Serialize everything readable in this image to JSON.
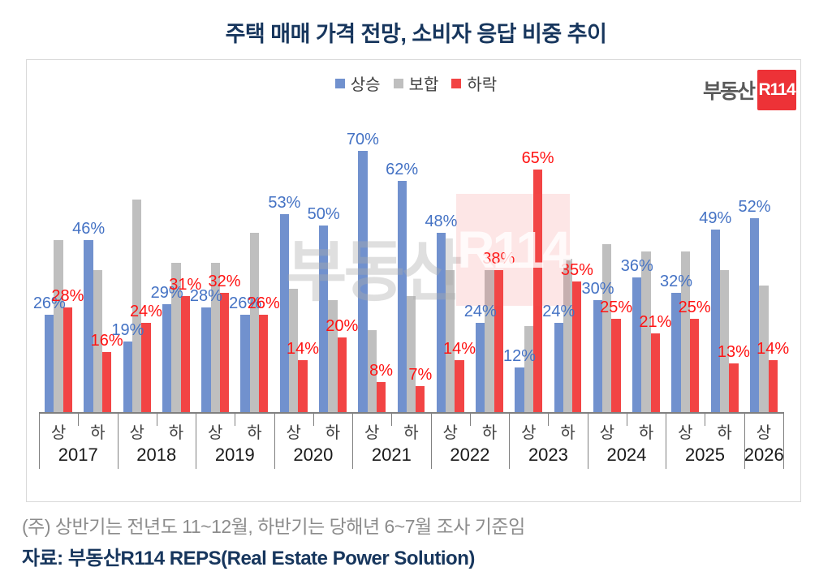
{
  "title": "주택 매매 가격 전망, 소비자 응답 비중 추이",
  "legend": {
    "items": [
      {
        "label": "상승",
        "color": "#7191CE"
      },
      {
        "label": "보합",
        "color": "#BFBFBF"
      },
      {
        "label": "하락",
        "color": "#F24444"
      }
    ]
  },
  "logo": {
    "prefix": "부동산",
    "box": "R114"
  },
  "watermark": {
    "text": "부동산",
    "box_text": "R114"
  },
  "footnote": "(주) 상반기는 전년도 11~12월, 하반기는 당해년 6~7월 조사 기준임",
  "source": "자료: 부동산R114 REPS(Real Estate Power Solution)",
  "colors": {
    "rise_bar": "#7191CE",
    "flat_bar": "#BFBFBF",
    "fall_bar": "#F24444",
    "rise_label": "#4472C4",
    "fall_label": "#FF1212",
    "title": "#17365D",
    "footnote": "#8C8C8C",
    "logo_red": "#ED3237",
    "frame_border": "#D9D9D9",
    "axis": "#808080"
  },
  "chart_data": {
    "type": "bar",
    "title": "주택 매매 가격 전망, 소비자 응답 비중 추이",
    "unit": "%",
    "grid": false,
    "legend_position": "top-center",
    "ylim": [
      0,
      82
    ],
    "series_names": {
      "rise": "상승",
      "flat": "보합",
      "fall": "하락"
    },
    "labels_shown": {
      "rise": true,
      "flat": false,
      "fall": true
    },
    "periods": [
      {
        "year": "2017",
        "half": "상",
        "rise": 26,
        "flat": 46,
        "fall": 28
      },
      {
        "year": "2017",
        "half": "하",
        "rise": 46,
        "flat": 38,
        "fall": 16
      },
      {
        "year": "2018",
        "half": "상",
        "rise": 19,
        "flat": 57,
        "fall": 24
      },
      {
        "year": "2018",
        "half": "하",
        "rise": 29,
        "flat": 40,
        "fall": 31
      },
      {
        "year": "2019",
        "half": "상",
        "rise": 28,
        "flat": 40,
        "fall": 32
      },
      {
        "year": "2019",
        "half": "하",
        "rise": 26,
        "flat": 48,
        "fall": 26
      },
      {
        "year": "2020",
        "half": "상",
        "rise": 53,
        "flat": 33,
        "fall": 14
      },
      {
        "year": "2020",
        "half": "하",
        "rise": 50,
        "flat": 30,
        "fall": 20
      },
      {
        "year": "2021",
        "half": "상",
        "rise": 70,
        "flat": 22,
        "fall": 8
      },
      {
        "year": "2021",
        "half": "하",
        "rise": 62,
        "flat": 31,
        "fall": 7
      },
      {
        "year": "2022",
        "half": "상",
        "rise": 48,
        "flat": 38,
        "fall": 14
      },
      {
        "year": "2022",
        "half": "하",
        "rise": 24,
        "flat": 38,
        "fall": 38
      },
      {
        "year": "2023",
        "half": "상",
        "rise": 12,
        "flat": 23,
        "fall": 65
      },
      {
        "year": "2023",
        "half": "하",
        "rise": 24,
        "flat": 41,
        "fall": 35
      },
      {
        "year": "2024",
        "half": "상",
        "rise": 30,
        "flat": 45,
        "fall": 25
      },
      {
        "year": "2024",
        "half": "하",
        "rise": 36,
        "flat": 43,
        "fall": 21
      },
      {
        "year": "2025",
        "half": "상",
        "rise": 32,
        "flat": 43,
        "fall": 25
      },
      {
        "year": "2025",
        "half": "하",
        "rise": 49,
        "flat": 38,
        "fall": 13
      },
      {
        "year": "2026",
        "half": "상",
        "rise": 52,
        "flat": 34,
        "fall": 14
      }
    ]
  }
}
